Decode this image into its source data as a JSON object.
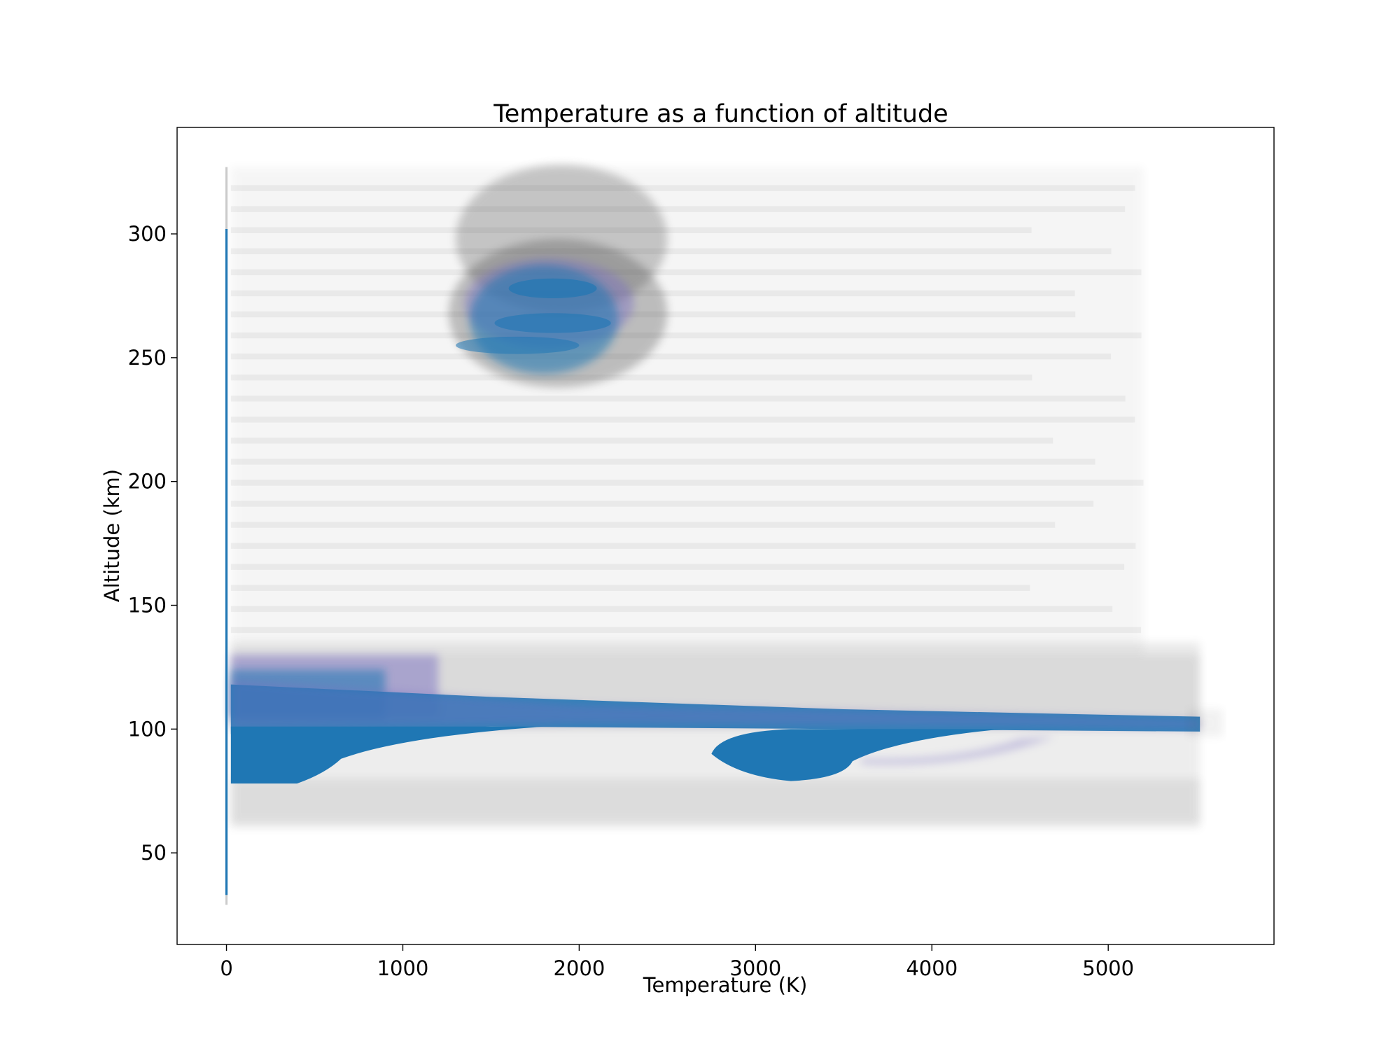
{
  "chart_data": {
    "type": "scatter",
    "title": "Temperature  as a function of altitude",
    "xlabel": "Temperature (K)",
    "ylabel": "Altitude (km)",
    "xlim": [
      -280,
      5940
    ],
    "ylim": [
      13,
      343
    ],
    "x_ticks": [
      0,
      1000,
      2000,
      3000,
      4000,
      5000
    ],
    "y_ticks": [
      50,
      100,
      150,
      200,
      250,
      300
    ],
    "grid": false,
    "legend": "none",
    "colors": {
      "point": "#1f77b4",
      "haze": "#555555",
      "edge": "#7a6fc2"
    },
    "density_regions": [
      {
        "label": "near-zero column",
        "x": [
          0,
          10
        ],
        "y": [
          30,
          327
        ],
        "density": "high"
      },
      {
        "label": "dense layer left",
        "x": [
          25,
          700
        ],
        "y": [
          78,
          101
        ],
        "density": "high"
      },
      {
        "label": "dense layer middle",
        "x": [
          2750,
          3600
        ],
        "y": [
          79,
          100
        ],
        "density": "high"
      },
      {
        "label": "upper band",
        "x": [
          25,
          5520
        ],
        "y": [
          98,
          128
        ],
        "density": "medium"
      },
      {
        "label": "upper cluster",
        "x": [
          1150,
          2450
        ],
        "y": [
          235,
          290
        ],
        "density": "medium"
      },
      {
        "label": "sparse background",
        "x": [
          25,
          5520
        ],
        "y": [
          60,
          327
        ],
        "density": "low"
      }
    ]
  }
}
